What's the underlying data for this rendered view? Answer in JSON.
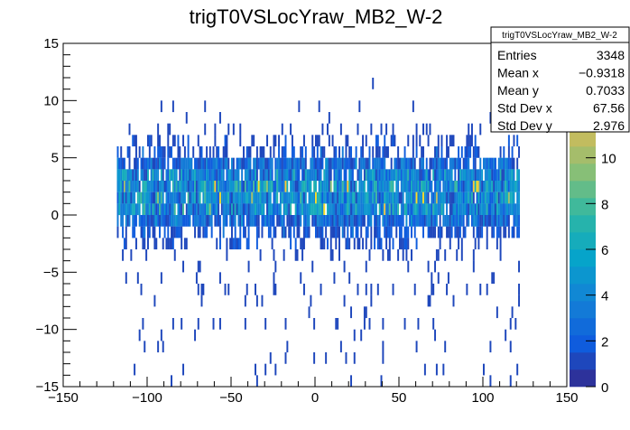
{
  "chart_data": {
    "type": "heatmap",
    "title": "trigT0VSLocYraw_MB2_W-2",
    "xlabel": "",
    "ylabel": "",
    "xlim": [
      -150,
      150
    ],
    "ylim": [
      -15,
      15
    ],
    "zlim": [
      0,
      15
    ],
    "x_bin_width": 1,
    "y_bin_width": 1,
    "x_occupied_range": [
      -118,
      122
    ],
    "x_ticks": [
      "−150",
      "−100",
      "−50",
      "0",
      "50",
      "100",
      "150"
    ],
    "x_tick_values": [
      -150,
      -100,
      -50,
      0,
      50,
      100,
      150
    ],
    "y_ticks": [
      "−15",
      "−10",
      "−5",
      "0",
      "5",
      "10",
      "15"
    ],
    "y_tick_values": [
      -15,
      -10,
      -5,
      0,
      5,
      10,
      15
    ],
    "z_ticks": [
      "0",
      "2",
      "4",
      "6",
      "8",
      "10"
    ],
    "z_tick_values": [
      0,
      2,
      4,
      6,
      8,
      10
    ],
    "palette": [
      "#35288b",
      "#0f5cdd",
      "#1481d6",
      "#06a4ca",
      "#2eb7a4",
      "#87bf77",
      "#d1bb59",
      "#fec832",
      "#f9fb0e"
    ],
    "row_profile_note": "per y-bin lower edge: occupancy fraction and mean count",
    "row_profile": [
      {
        "y": 14,
        "occ": 0.004,
        "mean": 1
      },
      {
        "y": 13,
        "occ": 0.004,
        "mean": 1
      },
      {
        "y": 12,
        "occ": 0.0,
        "mean": 1
      },
      {
        "y": 11,
        "occ": 0.004,
        "mean": 1
      },
      {
        "y": 10,
        "occ": 0.0,
        "mean": 1
      },
      {
        "y": 9,
        "occ": 0.04,
        "mean": 1
      },
      {
        "y": 8,
        "occ": 0.03,
        "mean": 1
      },
      {
        "y": 7,
        "occ": 0.1,
        "mean": 1
      },
      {
        "y": 6,
        "occ": 0.25,
        "mean": 1.1
      },
      {
        "y": 5,
        "occ": 0.4,
        "mean": 1.3
      },
      {
        "y": 4,
        "occ": 0.85,
        "mean": 2.3
      },
      {
        "y": 3,
        "occ": 0.9,
        "mean": 3.5
      },
      {
        "y": 2,
        "occ": 0.95,
        "mean": 4.2
      },
      {
        "y": 1,
        "occ": 0.95,
        "mean": 4.2
      },
      {
        "y": 0,
        "occ": 0.95,
        "mean": 4.0
      },
      {
        "y": -1,
        "occ": 0.85,
        "mean": 2.3
      },
      {
        "y": -2,
        "occ": 0.5,
        "mean": 1.4
      },
      {
        "y": -3,
        "occ": 0.33,
        "mean": 1.1
      },
      {
        "y": -4,
        "occ": 0.15,
        "mean": 1
      },
      {
        "y": -5,
        "occ": 0.07,
        "mean": 1
      },
      {
        "y": -6,
        "occ": 0.06,
        "mean": 1
      },
      {
        "y": -7,
        "occ": 0.08,
        "mean": 1
      },
      {
        "y": -8,
        "occ": 0.05,
        "mean": 1
      },
      {
        "y": -9,
        "occ": 0.04,
        "mean": 1
      },
      {
        "y": -10,
        "occ": 0.06,
        "mean": 1
      },
      {
        "y": -11,
        "occ": 0.03,
        "mean": 1
      },
      {
        "y": -12,
        "occ": 0.04,
        "mean": 1
      },
      {
        "y": -13,
        "occ": 0.03,
        "mean": 1
      },
      {
        "y": -14,
        "occ": 0.02,
        "mean": 1
      },
      {
        "y": -15,
        "occ": 0.03,
        "mean": 1
      }
    ],
    "stats": {
      "name": "trigT0VSLocYraw_MB2_W-2",
      "rows": [
        {
          "label": "Entries",
          "value": "3348"
        },
        {
          "label": "Mean x",
          "value": "−0.9318"
        },
        {
          "label": "Mean y",
          "value": "0.7033"
        },
        {
          "label": "Std Dev x",
          "value": "67.56"
        },
        {
          "label": "Std Dev y",
          "value": "2.976"
        }
      ]
    }
  }
}
